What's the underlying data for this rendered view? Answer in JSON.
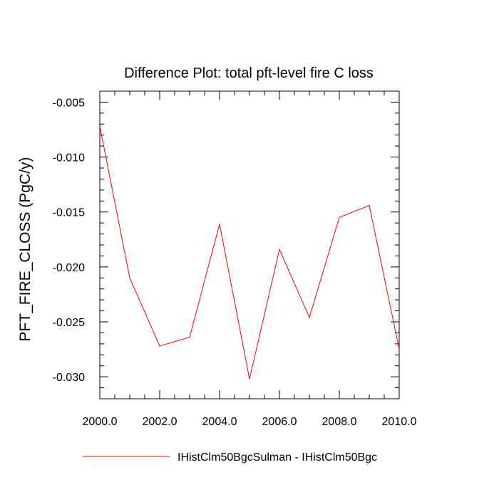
{
  "chart_data": {
    "type": "line",
    "title": "Difference Plot: total pft-level fire C loss",
    "xlabel": "",
    "ylabel": "PFT_FIRE_CLOSS  (PgC/y)",
    "xlim": [
      2000,
      2010
    ],
    "ylim": [
      -0.032,
      -0.004
    ],
    "x_ticks": [
      "2000.0",
      "2002.0",
      "2004.0",
      "2006.0",
      "2008.0",
      "2010.0"
    ],
    "y_ticks": [
      "-0.005",
      "-0.010",
      "-0.015",
      "-0.020",
      "-0.025",
      "-0.030"
    ],
    "grid": false,
    "legend_position": "bottom",
    "series": [
      {
        "name": "IHistClm50BgcSulman - IHistClm50Bgc",
        "color": "#ff0000",
        "x": [
          2000,
          2001,
          2002,
          2003,
          2004,
          2005,
          2006,
          2007,
          2008,
          2009,
          2010
        ],
        "y": [
          -0.0072,
          -0.021,
          -0.0272,
          -0.0264,
          -0.0161,
          -0.0302,
          -0.0184,
          -0.0246,
          -0.0155,
          -0.0144,
          -0.0275
        ]
      }
    ]
  }
}
